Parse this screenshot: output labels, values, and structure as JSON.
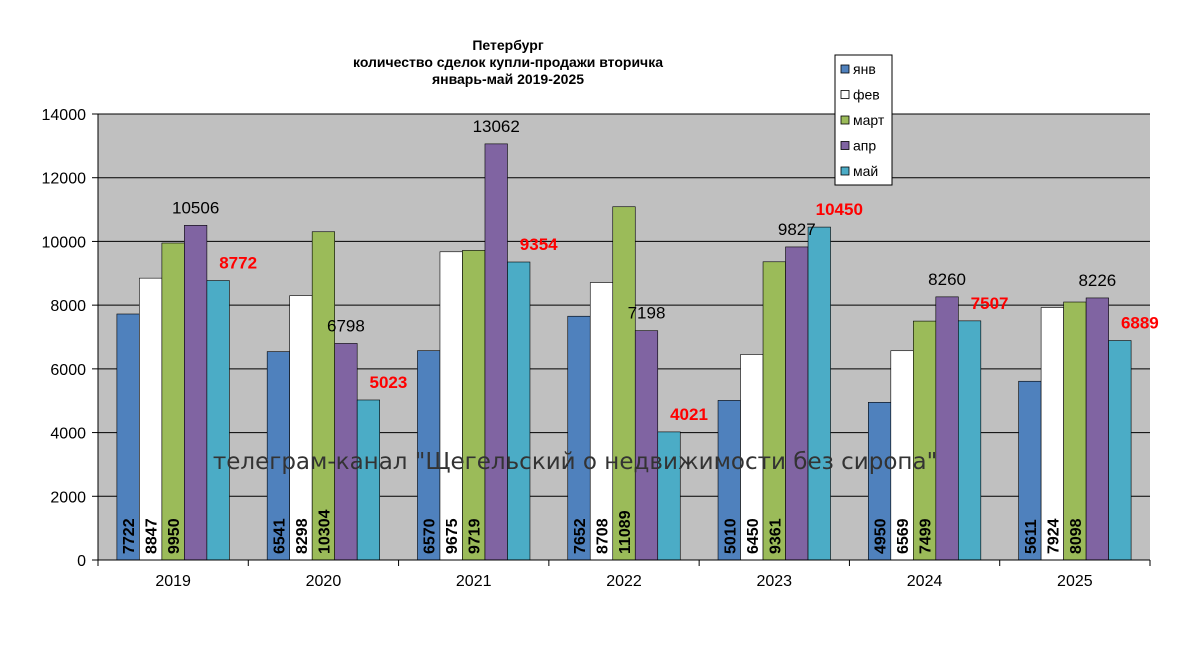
{
  "chart_data": {
    "type": "bar",
    "title_lines": [
      "Петербург",
      "количество сделок купли-продажи вторичка",
      "январь-май 2019-2025"
    ],
    "categories": [
      "2019",
      "2020",
      "2021",
      "2022",
      "2023",
      "2024",
      "2025"
    ],
    "series": [
      {
        "name": "янв",
        "color": "#4F81BD",
        "values": [
          7722,
          6541,
          6570,
          7652,
          5010,
          4950,
          5611
        ]
      },
      {
        "name": "фев",
        "color": "#FFFFFF",
        "values": [
          8847,
          8298,
          9675,
          8708,
          6450,
          6569,
          7924
        ]
      },
      {
        "name": "март",
        "color": "#9BBB59",
        "values": [
          9950,
          10304,
          9719,
          11089,
          9361,
          7499,
          8098
        ]
      },
      {
        "name": "апр",
        "color": "#8064A2",
        "values": [
          10506,
          6798,
          13062,
          7198,
          9827,
          8260,
          8226
        ]
      },
      {
        "name": "май",
        "color": "#4BACC6",
        "values": [
          8772,
          5023,
          9354,
          4021,
          10450,
          7507,
          6889
        ]
      }
    ],
    "inside_labels": {
      "янв": [
        "7722",
        "6541",
        "6570",
        "7652",
        "5010",
        "4950",
        "5611"
      ],
      "фев": [
        "8847",
        "8298",
        "9675",
        "8708",
        "6450",
        "6569",
        "7924"
      ],
      "март": [
        "9950",
        "10304",
        "9719",
        "11089",
        "9361",
        "7499",
        "8098"
      ]
    },
    "top_labels": {
      "апр": [
        "10506",
        "6798",
        "13062",
        "7198",
        "9827",
        "8260",
        "8226"
      ],
      "май": [
        "8772",
        "5023",
        "9354",
        "4021",
        "10450",
        "7507",
        "6889"
      ]
    },
    "ylim": [
      0,
      14000
    ],
    "y_ticks": [
      "0",
      "2000",
      "4000",
      "6000",
      "8000",
      "10000",
      "12000",
      "14000"
    ],
    "grid": true,
    "legend_position": "top-right",
    "plot_background": "#C0C0C0",
    "highlight_color": "#FF0000",
    "watermark": "телеграм-канал \"Щегельский о недвижимости без сиропа\""
  }
}
